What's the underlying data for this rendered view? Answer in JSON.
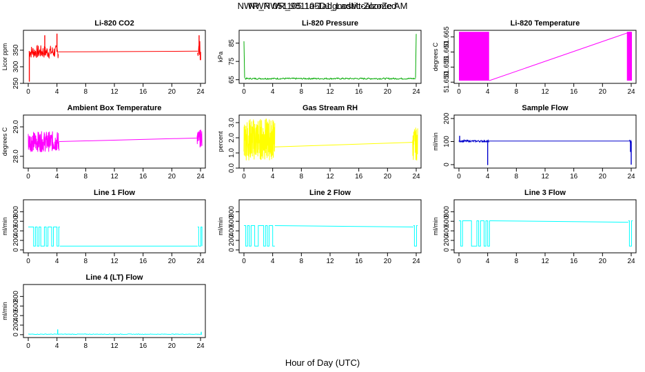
{
  "page": {
    "title_a": "NWR_NWR_981105D1_LadMtcalzoZe AM",
    "title_b": "NWR 051105 1a-1adgnostic-Zoomed",
    "xlabel": "Hour of Day (UTC)"
  },
  "colors": {
    "red": "#ff0000",
    "green": "#00aa00",
    "magenta": "#ff00ff",
    "yellow": "#ffff00",
    "blue": "#0000cc",
    "cyan": "#00ffff"
  },
  "chart_data": [
    {
      "type": "line",
      "title": "Li-820 CO2",
      "ylabel": "Licor ppm",
      "color": "red",
      "xlim": [
        0,
        24
      ],
      "ylim": [
        250,
        410
      ],
      "yticks": [
        "250",
        "300",
        "350"
      ],
      "ytick_values": [
        250,
        300,
        350
      ],
      "xticks": [
        0,
        4,
        8,
        12,
        16,
        20,
        24
      ],
      "series": [
        {
          "mode": "noise",
          "x": [
            0.1,
            4.2
          ],
          "center": 345,
          "amp": 20,
          "step": 0.05
        },
        {
          "mode": "line",
          "x": [
            4.2,
            23.6
          ],
          "y": [
            345,
            347
          ]
        },
        {
          "mode": "noise",
          "x": [
            23.6,
            24.0
          ],
          "center": 350,
          "amp": 30,
          "step": 0.05
        }
      ],
      "spikes": [
        [
          0.15,
          255
        ],
        [
          2.3,
          395
        ],
        [
          4.0,
          400
        ],
        [
          23.8,
          395
        ],
        [
          24.0,
          320
        ]
      ]
    },
    {
      "type": "line",
      "title": "Li-820 Pressure",
      "ylabel": "kPa",
      "color": "green",
      "xlim": [
        0,
        24
      ],
      "ylim": [
        63,
        92
      ],
      "yticks": [
        "65",
        "75",
        "85"
      ],
      "ytick_values": [
        65,
        75,
        85
      ],
      "xticks": [
        0,
        4,
        8,
        12,
        16,
        20,
        24
      ],
      "series": [
        {
          "mode": "line",
          "x": [
            0.0,
            0.1
          ],
          "y": [
            86,
            66
          ]
        },
        {
          "mode": "noise",
          "x": [
            0.1,
            24.0
          ],
          "center": 65.6,
          "amp": 0.4,
          "step": 0.08
        },
        {
          "mode": "line",
          "x": [
            23.9,
            24.0
          ],
          "y": [
            66,
            90
          ]
        }
      ],
      "spikes": []
    },
    {
      "type": "line",
      "title": "Li-820 Temperature",
      "ylabel": "degrees C",
      "color": "magenta",
      "xlim": [
        0,
        24
      ],
      "ylim": [
        51.6496,
        51.6672
      ],
      "yticks": [
        "51.650",
        "51.655",
        "51.660",
        "51.665"
      ],
      "ytick_values": [
        51.65,
        51.655,
        51.66,
        51.665
      ],
      "xticks": [
        0,
        4,
        8,
        12,
        16,
        20,
        24
      ],
      "series": [
        {
          "mode": "block",
          "x": [
            0.0,
            4.2
          ],
          "y": [
            51.6505,
            51.6667
          ]
        },
        {
          "mode": "line",
          "x": [
            4.2,
            23.9
          ],
          "y": [
            51.6505,
            51.6667
          ]
        },
        {
          "mode": "block",
          "x": [
            23.4,
            24.1
          ],
          "y": [
            51.6505,
            51.6667
          ]
        }
      ],
      "spikes": []
    },
    {
      "type": "line",
      "title": "Ambient Box Temperature",
      "ylabel": "degrees C",
      "color": "magenta",
      "xlim": [
        0,
        24
      ],
      "ylim": [
        27.6,
        29.4
      ],
      "yticks": [
        "28.0",
        "29.0"
      ],
      "ytick_values": [
        28.0,
        29.0
      ],
      "xticks": [
        0,
        4,
        8,
        12,
        16,
        20,
        24
      ],
      "series": [
        {
          "mode": "noise",
          "x": [
            0.0,
            4.3
          ],
          "center": 28.5,
          "amp": 0.35,
          "step": 0.025
        },
        {
          "mode": "line",
          "x": [
            4.3,
            23.5
          ],
          "y": [
            28.5,
            28.62
          ]
        },
        {
          "mode": "noise",
          "x": [
            23.5,
            24.2
          ],
          "center": 28.6,
          "amp": 0.3,
          "step": 0.025
        }
      ],
      "spikes": []
    },
    {
      "type": "line",
      "title": "Gas Stream RH",
      "ylabel": "percent",
      "color": "yellow",
      "xlim": [
        0,
        24
      ],
      "ylim": [
        0,
        3.5
      ],
      "yticks": [
        "0.0",
        "1.0",
        "2.0",
        "3.0"
      ],
      "ytick_values": [
        0,
        1,
        2,
        3
      ],
      "xticks": [
        0,
        4,
        8,
        12,
        16,
        20,
        24
      ],
      "series": [
        {
          "mode": "noise",
          "x": [
            0.0,
            4.3
          ],
          "center": 1.9,
          "amp": 1.4,
          "step": 0.02
        },
        {
          "mode": "line",
          "x": [
            4.3,
            23.5
          ],
          "y": [
            1.4,
            1.7
          ]
        },
        {
          "mode": "noise",
          "x": [
            23.5,
            24.2
          ],
          "center": 1.6,
          "amp": 1.1,
          "step": 0.025
        }
      ],
      "spikes": []
    },
    {
      "type": "line",
      "title": "Sample Flow",
      "ylabel": "ml/min",
      "color": "blue",
      "xlim": [
        0,
        24
      ],
      "ylim": [
        -15,
        215
      ],
      "yticks": [
        "0",
        "100",
        "200"
      ],
      "ytick_values": [
        0,
        100,
        200
      ],
      "xticks": [
        0,
        4,
        8,
        12,
        16,
        20,
        24
      ],
      "series": [
        {
          "mode": "noise",
          "x": [
            0.0,
            4.2
          ],
          "center": 102,
          "amp": 4,
          "step": 0.05
        },
        {
          "mode": "line",
          "x": [
            4.2,
            23.7
          ],
          "y": [
            102,
            102
          ]
        },
        {
          "mode": "noise",
          "x": [
            23.7,
            24.0
          ],
          "center": 102,
          "amp": 4,
          "step": 0.05
        }
      ],
      "spikes": [
        [
          0.1,
          125
        ],
        [
          4.0,
          -2
        ],
        [
          23.9,
          55
        ],
        [
          24.0,
          0
        ]
      ]
    },
    {
      "type": "line",
      "title": "Line 1 Flow",
      "ylabel": "ml/min",
      "color": "cyan",
      "xlim": [
        0,
        24
      ],
      "ylim": [
        -60,
        1050
      ],
      "yticks": [
        "0",
        "200",
        "400",
        "600",
        "800"
      ],
      "ytick_values": [
        0,
        200,
        400,
        600,
        800
      ],
      "xticks": [
        0,
        4,
        8,
        12,
        16,
        20,
        24
      ],
      "series": [
        {
          "mode": "square",
          "x": [
            0.0,
            4.4
          ],
          "lo": 80,
          "hi": 480,
          "step": 0.25
        },
        {
          "mode": "line",
          "x": [
            4.4,
            23.6
          ],
          "y": [
            80,
            80
          ]
        },
        {
          "mode": "square",
          "x": [
            23.6,
            24.2
          ],
          "lo": 80,
          "hi": 480,
          "step": 0.15
        }
      ],
      "spikes": []
    },
    {
      "type": "line",
      "title": "Line 2 Flow",
      "ylabel": "ml/min",
      "color": "cyan",
      "xlim": [
        0,
        24
      ],
      "ylim": [
        -60,
        1050
      ],
      "yticks": [
        "0",
        "200",
        "400",
        "600",
        "800"
      ],
      "ytick_values": [
        0,
        200,
        400,
        600,
        800
      ],
      "xticks": [
        0,
        4,
        8,
        12,
        16,
        20,
        24
      ],
      "series": [
        {
          "mode": "square",
          "x": [
            0.0,
            4.3
          ],
          "lo": 80,
          "hi": 510,
          "step": 0.25
        },
        {
          "mode": "line",
          "x": [
            4.3,
            23.6
          ],
          "y": [
            510,
            480
          ]
        },
        {
          "mode": "square",
          "x": [
            23.6,
            24.2
          ],
          "lo": 80,
          "hi": 510,
          "step": 0.15
        }
      ],
      "spikes": []
    },
    {
      "type": "line",
      "title": "Line 3 Flow",
      "ylabel": "ml/min",
      "color": "cyan",
      "xlim": [
        0,
        24
      ],
      "ylim": [
        -60,
        1050
      ],
      "yticks": [
        "0",
        "200",
        "400",
        "600",
        "800"
      ],
      "ytick_values": [
        0,
        200,
        400,
        600,
        800
      ],
      "xticks": [
        0,
        4,
        8,
        12,
        16,
        20,
        24
      ],
      "series": [
        {
          "mode": "square",
          "x": [
            0.0,
            4.3
          ],
          "lo": 80,
          "hi": 610,
          "step": 0.25
        },
        {
          "mode": "line",
          "x": [
            4.3,
            23.6
          ],
          "y": [
            610,
            580
          ]
        },
        {
          "mode": "square",
          "x": [
            23.6,
            24.2
          ],
          "lo": 80,
          "hi": 610,
          "step": 0.15
        }
      ],
      "spikes": []
    },
    {
      "type": "line",
      "title": "Line 4 (LT) Flow",
      "ylabel": "ml/min",
      "color": "cyan",
      "xlim": [
        0,
        24
      ],
      "ylim": [
        -60,
        1050
      ],
      "yticks": [
        "0",
        "200",
        "400",
        "600",
        "800"
      ],
      "ytick_values": [
        0,
        200,
        400,
        600,
        800
      ],
      "xticks": [
        0,
        4,
        8,
        12,
        16,
        20,
        24
      ],
      "series": [
        {
          "mode": "noise",
          "x": [
            0.0,
            24.2
          ],
          "center": 10,
          "amp": 6,
          "step": 0.1
        }
      ],
      "spikes": [
        [
          4.1,
          110
        ],
        [
          24.1,
          60
        ]
      ]
    }
  ]
}
